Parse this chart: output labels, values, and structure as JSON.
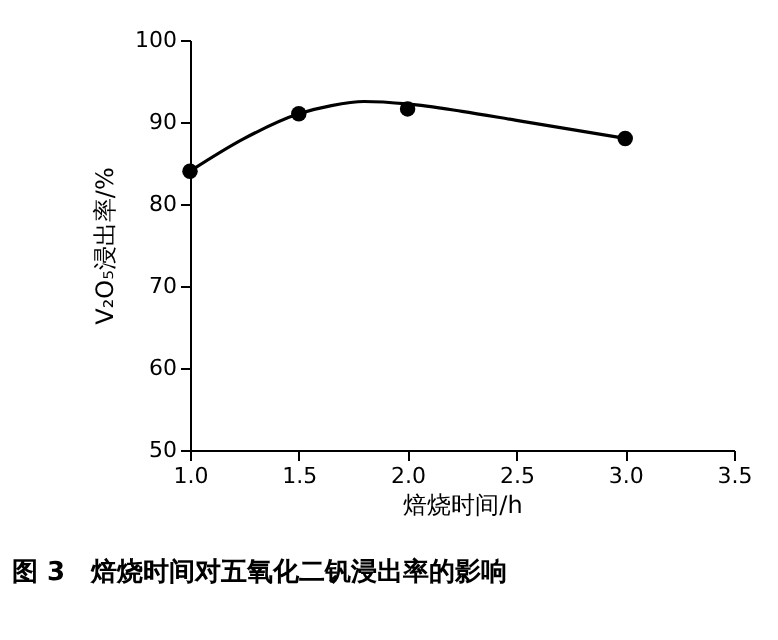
{
  "chart_data": {
    "type": "scatter",
    "title": "图 3　焙烧时间对五氧化二钒浸出率的影响",
    "xlabel": "焙烧时间/h",
    "ylabel": "V₂O₅浸出率/%",
    "xlim": [
      1.0,
      3.5
    ],
    "xticks": [
      {
        "value": 1,
        "label": "1.0"
      },
      1.5,
      {
        "value": 2,
        "label": "2.0"
      },
      2.5,
      {
        "value": 3,
        "label": "3.0"
      },
      3.5
    ],
    "ylim": [
      50,
      100
    ],
    "yticks": [
      50,
      60,
      70,
      80,
      90,
      100
    ],
    "series": [
      {
        "marker": "circle",
        "color": "#000000",
        "x": [
          1.0,
          1.5,
          2.0,
          3.0
        ],
        "values": [
          84,
          91,
          91.6,
          88
        ]
      },
      {
        "type": "line",
        "color": "#000000",
        "x": [
          1.0,
          1.25,
          1.5,
          1.65,
          1.8,
          2.0,
          2.25,
          2.5,
          2.75,
          3.0
        ],
        "values": [
          84,
          88,
          91,
          92,
          92.5,
          92.2,
          91.3,
          90.2,
          89.1,
          88
        ]
      }
    ]
  }
}
